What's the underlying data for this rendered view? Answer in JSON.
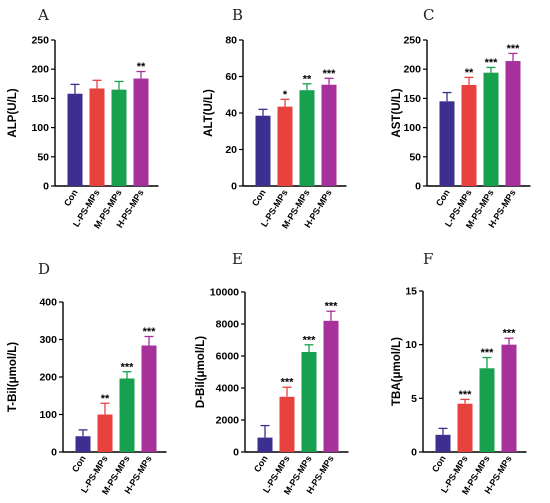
{
  "colors": [
    "#3d2f8f",
    "#e8423f",
    "#17a14f",
    "#a6319a"
  ],
  "chart_data": [
    {
      "type": "bar",
      "panel": "A",
      "ylabel": "ALP(U/L)",
      "categories": [
        "Con",
        "L-PS-MPs",
        "M-PS-MPs",
        "H-PS-MPs"
      ],
      "values": [
        158,
        167,
        165,
        184
      ],
      "errors": [
        16,
        14,
        14,
        12
      ],
      "significance": [
        "",
        "",
        "",
        "**"
      ],
      "ylim": [
        0,
        250
      ],
      "yticks": [
        0,
        50,
        100,
        150,
        200,
        250
      ],
      "ytick_labels": [
        "0",
        "50",
        "100",
        "150",
        "200",
        "250"
      ]
    },
    {
      "type": "bar",
      "panel": "B",
      "ylabel": "ALT(U/L)",
      "categories": [
        "Con",
        "L-PS-MPs",
        "M-PS-MPs",
        "H-PS-MPs"
      ],
      "values": [
        38.5,
        43.5,
        52.5,
        55.5
      ],
      "errors": [
        3.5,
        4,
        3.5,
        3.5
      ],
      "significance": [
        "",
        "*",
        "**",
        "***"
      ],
      "ylim": [
        0,
        80
      ],
      "yticks": [
        0,
        20,
        40,
        60,
        80
      ],
      "ytick_labels": [
        "0",
        "20",
        "40",
        "60",
        "80"
      ]
    },
    {
      "type": "bar",
      "panel": "C",
      "ylabel": "AST(U/L)",
      "categories": [
        "Con",
        "L-PS-MPs",
        "M-PS-MPs",
        "H-PS-MPs"
      ],
      "values": [
        145,
        173,
        194,
        214
      ],
      "errors": [
        15,
        13,
        9,
        13
      ],
      "significance": [
        "",
        "**",
        "***",
        "***"
      ],
      "ylim": [
        0,
        250
      ],
      "yticks": [
        0,
        50,
        100,
        150,
        200,
        250
      ],
      "ytick_labels": [
        "0",
        "50",
        "100",
        "150",
        "200",
        "250"
      ]
    },
    {
      "type": "bar",
      "panel": "D",
      "ylabel": "T-Bil(μmol/L)",
      "categories": [
        "Con",
        "L-PS-MPs",
        "M-PS-MPs",
        "H-PS-MPs"
      ],
      "values": [
        42,
        100,
        196,
        284
      ],
      "errors": [
        17,
        30,
        18,
        24
      ],
      "significance": [
        "",
        "**",
        "***",
        "***"
      ],
      "ylim": [
        0,
        400
      ],
      "yticks": [
        0,
        100,
        200,
        300,
        400
      ],
      "ytick_labels": [
        "0",
        "100",
        "200",
        "300",
        "400"
      ]
    },
    {
      "type": "bar",
      "panel": "E",
      "ylabel": "D-Bil(μmol/L)",
      "categories": [
        "Con",
        "L-PS-MPs",
        "M-PS-MPs",
        "H-PS-MPs"
      ],
      "values": [
        900,
        3450,
        6250,
        8200
      ],
      "errors": [
        750,
        600,
        450,
        600
      ],
      "significance": [
        "",
        "***",
        "***",
        "***"
      ],
      "ylim": [
        0,
        10000
      ],
      "yticks": [
        0,
        2000,
        4000,
        6000,
        8000,
        10000
      ],
      "ytick_labels": [
        "0",
        "2000",
        "4000",
        "6000",
        "8000",
        "10000"
      ]
    },
    {
      "type": "bar",
      "panel": "F",
      "ylabel": "TBA(μmol/L)",
      "categories": [
        "Con",
        "L-PS-MPs",
        "M-PS-MPs",
        "H-PS-MPs"
      ],
      "values": [
        1.6,
        4.5,
        7.8,
        10.0
      ],
      "errors": [
        0.6,
        0.4,
        1.0,
        0.6
      ],
      "significance": [
        "",
        "***",
        "***",
        "***"
      ],
      "ylim": [
        0,
        15
      ],
      "yticks": [
        0,
        5,
        10,
        15
      ],
      "ytick_labels": [
        "0",
        "5",
        "10",
        "15"
      ]
    }
  ]
}
